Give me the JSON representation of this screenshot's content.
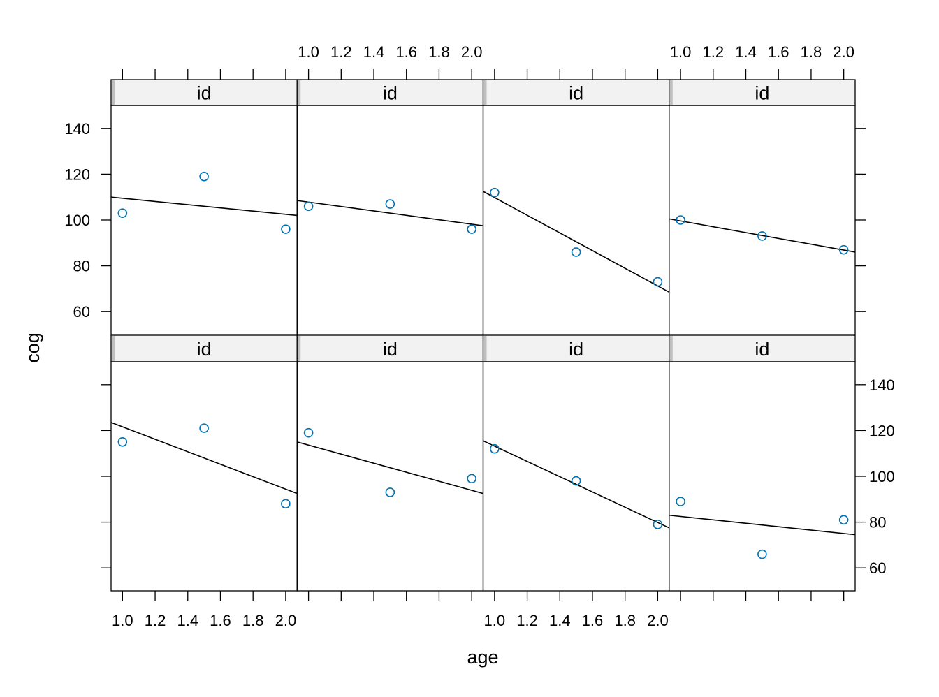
{
  "chart_data": {
    "type": "scatter",
    "layout": {
      "columns": 4,
      "rows": 2
    },
    "xlabel": "age",
    "ylabel": "cog",
    "xlim": [
      0.93,
      2.07
    ],
    "ylim": [
      50,
      150
    ],
    "x_ticks": [
      1.0,
      1.2,
      1.4,
      1.6,
      1.8,
      2.0
    ],
    "x_tick_labels": [
      "1.0",
      "1.2",
      "1.4",
      "1.6",
      "1.8",
      "2.0"
    ],
    "y_ticks": [
      60,
      80,
      100,
      120,
      140
    ],
    "y_tick_labels": [
      "60",
      "80",
      "100",
      "120",
      "140"
    ],
    "point_color": "#0072b2",
    "line_color": "#000000",
    "strip_color": "#f2f2f2",
    "panels": [
      {
        "strip": "id",
        "points": [
          {
            "x": 1.0,
            "y": 103
          },
          {
            "x": 1.5,
            "y": 119
          },
          {
            "x": 2.0,
            "y": 96
          }
        ],
        "fit_line": [
          {
            "x": 0.93,
            "y": 110
          },
          {
            "x": 2.07,
            "y": 102
          }
        ]
      },
      {
        "strip": "id",
        "points": [
          {
            "x": 1.0,
            "y": 106
          },
          {
            "x": 1.5,
            "y": 107
          },
          {
            "x": 2.0,
            "y": 96
          }
        ],
        "fit_line": [
          {
            "x": 0.93,
            "y": 108.5
          },
          {
            "x": 2.07,
            "y": 97.5
          }
        ]
      },
      {
        "strip": "id",
        "points": [
          {
            "x": 1.0,
            "y": 112
          },
          {
            "x": 1.5,
            "y": 86
          },
          {
            "x": 2.0,
            "y": 73
          }
        ],
        "fit_line": [
          {
            "x": 0.93,
            "y": 112.5
          },
          {
            "x": 2.07,
            "y": 68.5
          }
        ]
      },
      {
        "strip": "id",
        "points": [
          {
            "x": 1.0,
            "y": 100
          },
          {
            "x": 1.5,
            "y": 93
          },
          {
            "x": 2.0,
            "y": 87
          }
        ],
        "fit_line": [
          {
            "x": 0.93,
            "y": 100.5
          },
          {
            "x": 2.07,
            "y": 86
          }
        ]
      },
      {
        "strip": "id",
        "points": [
          {
            "x": 1.0,
            "y": 115
          },
          {
            "x": 1.5,
            "y": 121
          },
          {
            "x": 2.0,
            "y": 88
          }
        ],
        "fit_line": [
          {
            "x": 0.93,
            "y": 123.5
          },
          {
            "x": 2.07,
            "y": 92.5
          }
        ]
      },
      {
        "strip": "id",
        "points": [
          {
            "x": 1.0,
            "y": 119
          },
          {
            "x": 1.5,
            "y": 93
          },
          {
            "x": 2.0,
            "y": 99
          }
        ],
        "fit_line": [
          {
            "x": 0.93,
            "y": 115
          },
          {
            "x": 2.07,
            "y": 92.5
          }
        ]
      },
      {
        "strip": "id",
        "points": [
          {
            "x": 1.0,
            "y": 112
          },
          {
            "x": 1.5,
            "y": 98
          },
          {
            "x": 2.0,
            "y": 79
          }
        ],
        "fit_line": [
          {
            "x": 0.93,
            "y": 115.5
          },
          {
            "x": 2.07,
            "y": 77.5
          }
        ]
      },
      {
        "strip": "id",
        "points": [
          {
            "x": 1.0,
            "y": 89
          },
          {
            "x": 1.5,
            "y": 66
          },
          {
            "x": 2.0,
            "y": 81
          }
        ],
        "fit_line": [
          {
            "x": 0.93,
            "y": 83
          },
          {
            "x": 2.07,
            "y": 74.5
          }
        ]
      }
    ]
  }
}
